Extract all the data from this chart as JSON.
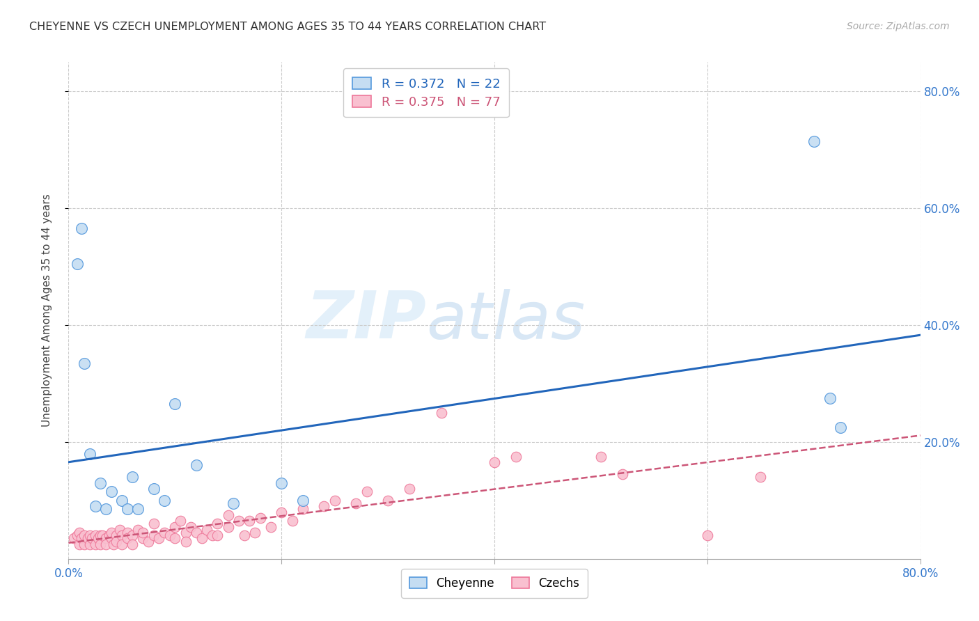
{
  "title": "CHEYENNE VS CZECH UNEMPLOYMENT AMONG AGES 35 TO 44 YEARS CORRELATION CHART",
  "source": "Source: ZipAtlas.com",
  "ylabel": "Unemployment Among Ages 35 to 44 years",
  "xlim": [
    0.0,
    0.8
  ],
  "ylim": [
    0.0,
    0.85
  ],
  "grid_yticks": [
    0.2,
    0.4,
    0.6,
    0.8
  ],
  "grid_xticks": [
    0.2,
    0.4,
    0.6,
    0.8
  ],
  "xtick_labels_positions": [
    0.0,
    0.8
  ],
  "xtick_labels_values": [
    "0.0%",
    "80.0%"
  ],
  "ytick_labels_positions": [
    0.2,
    0.4,
    0.6,
    0.8
  ],
  "ytick_labels_values": [
    "20.0%",
    "40.0%",
    "60.0%",
    "80.0%"
  ],
  "cheyenne_face_color": "#c5ddf2",
  "czech_face_color": "#f9c0d0",
  "cheyenne_edge_color": "#5599dd",
  "czech_edge_color": "#ee7799",
  "cheyenne_line_color": "#2266bb",
  "czech_line_color": "#cc5577",
  "cheyenne_R": 0.372,
  "cheyenne_N": 22,
  "czech_R": 0.375,
  "czech_N": 77,
  "watermark_zip": "ZIP",
  "watermark_atlas": "atlas",
  "background_color": "#ffffff",
  "grid_color": "#cccccc",
  "right_ytick_color": "#3377cc",
  "cheyenne_x": [
    0.012,
    0.008,
    0.015,
    0.02,
    0.025,
    0.03,
    0.035,
    0.04,
    0.05,
    0.055,
    0.06,
    0.065,
    0.08,
    0.09,
    0.1,
    0.12,
    0.155,
    0.2,
    0.22,
    0.7,
    0.715,
    0.725
  ],
  "cheyenne_y": [
    0.565,
    0.505,
    0.335,
    0.18,
    0.09,
    0.13,
    0.085,
    0.115,
    0.1,
    0.085,
    0.14,
    0.085,
    0.12,
    0.1,
    0.265,
    0.16,
    0.095,
    0.13,
    0.1,
    0.715,
    0.275,
    0.225
  ],
  "czech_x": [
    0.005,
    0.008,
    0.01,
    0.01,
    0.012,
    0.015,
    0.015,
    0.018,
    0.02,
    0.02,
    0.022,
    0.025,
    0.025,
    0.028,
    0.03,
    0.03,
    0.032,
    0.035,
    0.035,
    0.038,
    0.04,
    0.04,
    0.042,
    0.045,
    0.045,
    0.048,
    0.05,
    0.05,
    0.055,
    0.055,
    0.06,
    0.06,
    0.065,
    0.07,
    0.07,
    0.075,
    0.08,
    0.08,
    0.085,
    0.09,
    0.095,
    0.1,
    0.1,
    0.105,
    0.11,
    0.11,
    0.115,
    0.12,
    0.125,
    0.13,
    0.135,
    0.14,
    0.14,
    0.15,
    0.15,
    0.16,
    0.165,
    0.17,
    0.175,
    0.18,
    0.19,
    0.2,
    0.21,
    0.22,
    0.24,
    0.25,
    0.27,
    0.28,
    0.3,
    0.32,
    0.35,
    0.4,
    0.42,
    0.5,
    0.52,
    0.6,
    0.65
  ],
  "czech_y": [
    0.035,
    0.04,
    0.025,
    0.045,
    0.035,
    0.04,
    0.025,
    0.035,
    0.04,
    0.025,
    0.035,
    0.04,
    0.025,
    0.035,
    0.04,
    0.025,
    0.04,
    0.035,
    0.025,
    0.04,
    0.035,
    0.045,
    0.025,
    0.04,
    0.03,
    0.05,
    0.04,
    0.025,
    0.045,
    0.035,
    0.04,
    0.025,
    0.05,
    0.035,
    0.045,
    0.03,
    0.04,
    0.06,
    0.035,
    0.045,
    0.04,
    0.055,
    0.035,
    0.065,
    0.045,
    0.03,
    0.055,
    0.045,
    0.035,
    0.05,
    0.04,
    0.06,
    0.04,
    0.075,
    0.055,
    0.065,
    0.04,
    0.065,
    0.045,
    0.07,
    0.055,
    0.08,
    0.065,
    0.085,
    0.09,
    0.1,
    0.095,
    0.115,
    0.1,
    0.12,
    0.25,
    0.165,
    0.175,
    0.175,
    0.145,
    0.04,
    0.14
  ]
}
